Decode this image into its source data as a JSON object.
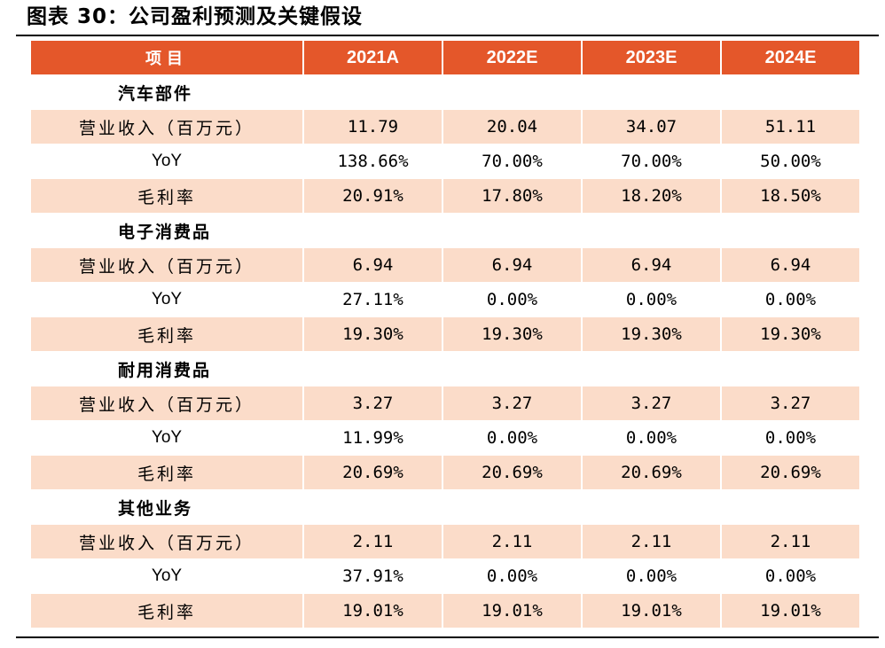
{
  "title": "图表 30：公司盈利预测及关键假设",
  "table": {
    "headers": [
      "项目",
      "2021A",
      "2022E",
      "2023E",
      "2024E"
    ],
    "sections": [
      {
        "name": "汽车部件",
        "rows": [
          {
            "label": "营业收入（百万元）",
            "values": [
              "11.79",
              "20.04",
              "34.07",
              "51.11"
            ]
          },
          {
            "label": "YoY",
            "values": [
              "138.66%",
              "70.00%",
              "70.00%",
              "50.00%"
            ]
          },
          {
            "label": "毛利率",
            "values": [
              "20.91%",
              "17.80%",
              "18.20%",
              "18.50%"
            ]
          }
        ]
      },
      {
        "name": "电子消费品",
        "rows": [
          {
            "label": "营业收入（百万元）",
            "values": [
              "6.94",
              "6.94",
              "6.94",
              "6.94"
            ]
          },
          {
            "label": "YoY",
            "values": [
              "27.11%",
              "0.00%",
              "0.00%",
              "0.00%"
            ]
          },
          {
            "label": "毛利率",
            "values": [
              "19.30%",
              "19.30%",
              "19.30%",
              "19.30%"
            ]
          }
        ]
      },
      {
        "name": "耐用消费品",
        "rows": [
          {
            "label": "营业收入（百万元）",
            "values": [
              "3.27",
              "3.27",
              "3.27",
              "3.27"
            ]
          },
          {
            "label": "YoY",
            "values": [
              "11.99%",
              "0.00%",
              "0.00%",
              "0.00%"
            ]
          },
          {
            "label": "毛利率",
            "values": [
              "20.69%",
              "20.69%",
              "20.69%",
              "20.69%"
            ]
          }
        ]
      },
      {
        "name": "其他业务",
        "rows": [
          {
            "label": "营业收入（百万元）",
            "values": [
              "2.11",
              "2.11",
              "2.11",
              "2.11"
            ]
          },
          {
            "label": "YoY",
            "values": [
              "37.91%",
              "0.00%",
              "0.00%",
              "0.00%"
            ]
          },
          {
            "label": "毛利率",
            "values": [
              "19.01%",
              "19.01%",
              "19.01%",
              "19.01%"
            ]
          }
        ]
      }
    ]
  },
  "colors": {
    "header_bg": "#e4572a",
    "header_text": "#ffffff",
    "shaded_row": "#fbdcc9"
  }
}
